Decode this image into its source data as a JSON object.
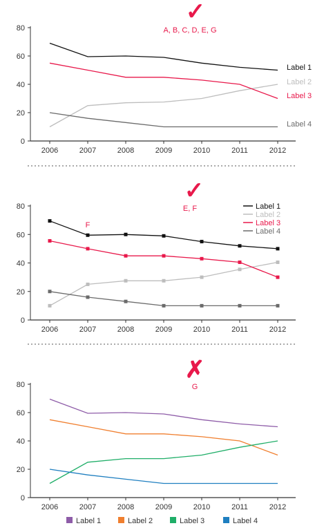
{
  "colors": {
    "accent": "#e8194b",
    "label1_black": "#111111",
    "label2_gray": "#bdbdbd",
    "label3_red": "#e8194b",
    "label4_gray": "#6b6b6b",
    "purple": "#8e5ca8",
    "orange": "#f07f2f",
    "green": "#1fae68",
    "blue": "#1f7fc0",
    "axis": "#333333",
    "divider": "#aaaaaa"
  },
  "chart_data": [
    {
      "type": "line",
      "panel": "top",
      "verdict_symbol": "✓",
      "annotation": "A, B, C, D, E, G",
      "x": [
        "2006",
        "2007",
        "2008",
        "2009",
        "2010",
        "2011",
        "2012"
      ],
      "yticks": [
        "0",
        "20",
        "40",
        "60",
        "80"
      ],
      "ylim": [
        0,
        80
      ],
      "markers": false,
      "legend": "direct-labels",
      "series": [
        {
          "name": "Label 1",
          "color": "#111111",
          "values": [
            69,
            59.5,
            60,
            59,
            55,
            52,
            50
          ]
        },
        {
          "name": "Label 2",
          "color": "#bdbdbd",
          "values": [
            10,
            25,
            27,
            27.5,
            30,
            35.5,
            40
          ]
        },
        {
          "name": "Label 3",
          "color": "#e8194b",
          "values": [
            55,
            50,
            45,
            45,
            43,
            40,
            30
          ]
        },
        {
          "name": "Label 4",
          "color": "#6b6b6b",
          "values": [
            20,
            16,
            13,
            10,
            10,
            10,
            10
          ]
        }
      ]
    },
    {
      "type": "line",
      "panel": "middle",
      "verdict_symbol": "✓",
      "annotation": "E, F",
      "inline_note": "F",
      "x": [
        "2006",
        "2007",
        "2008",
        "2009",
        "2010",
        "2011",
        "2012"
      ],
      "yticks": [
        "0",
        "20",
        "40",
        "60",
        "80"
      ],
      "ylim": [
        0,
        80
      ],
      "markers": true,
      "legend": "top-right",
      "series": [
        {
          "name": "Label 1",
          "color": "#111111",
          "values": [
            69.5,
            59.5,
            60,
            59,
            55,
            52,
            50
          ]
        },
        {
          "name": "Label 2",
          "color": "#bdbdbd",
          "values": [
            10,
            25,
            27.5,
            27.5,
            30,
            35.5,
            40.5
          ]
        },
        {
          "name": "Label 3",
          "color": "#e8194b",
          "values": [
            55.5,
            50,
            45,
            45,
            43,
            40.5,
            30
          ]
        },
        {
          "name": "Label 4",
          "color": "#6b6b6b",
          "values": [
            20,
            16,
            13,
            10,
            10,
            10,
            10
          ]
        }
      ]
    },
    {
      "type": "line",
      "panel": "bottom",
      "verdict_symbol": "✗",
      "annotation": "G",
      "x": [
        "2006",
        "2007",
        "2008",
        "2009",
        "2010",
        "2011",
        "2012"
      ],
      "yticks": [
        "0",
        "20",
        "40",
        "60",
        "80"
      ],
      "ylim": [
        0,
        80
      ],
      "markers": false,
      "legend": "bottom",
      "series": [
        {
          "name": "Label 1",
          "color": "#8e5ca8",
          "values": [
            69.5,
            59.5,
            60,
            59,
            55,
            52,
            50
          ]
        },
        {
          "name": "Label 2",
          "color": "#f07f2f",
          "values": [
            55,
            50,
            45,
            45,
            43,
            40,
            30
          ]
        },
        {
          "name": "Label 3",
          "color": "#1fae68",
          "values": [
            10,
            25,
            27.5,
            27.5,
            30,
            35.5,
            40
          ]
        },
        {
          "name": "Label 4",
          "color": "#1f7fc0",
          "values": [
            20,
            16,
            13,
            10,
            10,
            10,
            10
          ]
        }
      ]
    }
  ]
}
